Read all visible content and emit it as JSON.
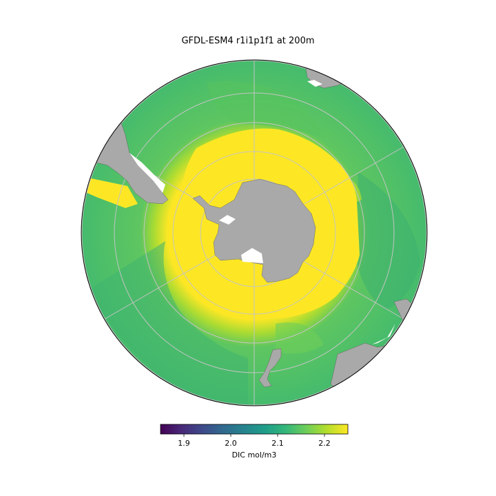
{
  "title": "GFDL-ESM4 r1i1p1f1 at 200m",
  "colorbar": {
    "label": "DIC mol/m3",
    "min": 1.85,
    "max": 2.25,
    "ticks": [
      1.9,
      2.0,
      2.1,
      2.2
    ],
    "tick_labels": [
      "1.9",
      "2.0",
      "2.1",
      "2.2"
    ],
    "colormap": "viridis",
    "colormap_stops": [
      "#440154",
      "#482878",
      "#3e4989",
      "#31688e",
      "#26828e",
      "#1f9e89",
      "#35b779",
      "#6ece58",
      "#b5de2b",
      "#fde725"
    ]
  },
  "map": {
    "projection": "south-polar-stereographic",
    "land_color": "#a9a9a9",
    "gridlines": true,
    "ocean_open_color": "#4cbe6c",
    "ocean_subantarctic_color": "#7acc4f",
    "ocean_polar_color": "#fde725",
    "nodata_color": "#ffffff"
  }
}
